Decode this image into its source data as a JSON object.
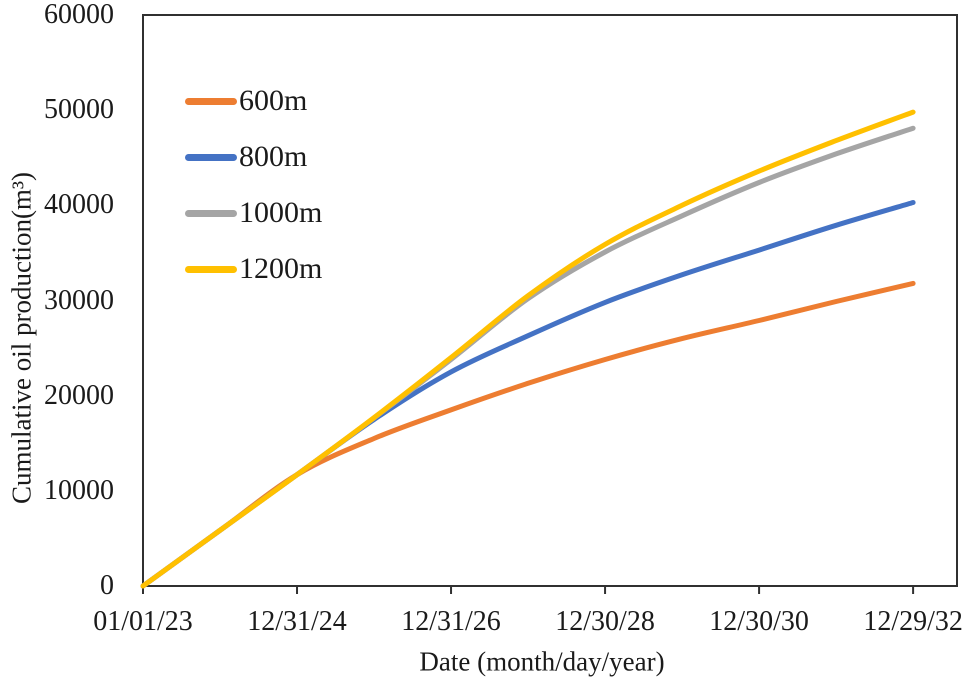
{
  "page": {
    "background": "#ffffff"
  },
  "axes": {
    "y_title": "Cumulative oil production(m³)",
    "x_title": "Date (month/day/year)",
    "y_tick_labels": [
      "0",
      "10000",
      "20000",
      "30000",
      "40000",
      "50000",
      "60000"
    ],
    "x_tick_labels": [
      "01/01/23",
      "12/31/24",
      "12/31/26",
      "12/30/28",
      "12/30/30",
      "12/29/32"
    ],
    "axis_color": "#303030"
  },
  "legend": {
    "items": [
      {
        "label": "600m",
        "color": "#ED7D31"
      },
      {
        "label": "800m",
        "color": "#4472C4"
      },
      {
        "label": "1000m",
        "color": "#A5A5A5"
      },
      {
        "label": "1200m",
        "color": "#FFC000"
      }
    ]
  },
  "chart_data": {
    "type": "line",
    "title": "",
    "xlabel": "Date (month/day/year)",
    "ylabel": "Cumulative oil production(m³)",
    "x_unit": "years since 01/01/23",
    "x": [
      0,
      1,
      2,
      3,
      4,
      5,
      6,
      7,
      8,
      9,
      10
    ],
    "x_tick_positions": [
      0,
      2,
      4,
      6,
      8,
      10
    ],
    "x_tick_labels": [
      "01/01/23",
      "12/31/24",
      "12/31/26",
      "12/30/28",
      "12/30/30",
      "12/29/32"
    ],
    "y_ticks": [
      0,
      10000,
      20000,
      30000,
      40000,
      50000,
      60000
    ],
    "ylim": [
      0,
      60000
    ],
    "xlim": [
      0,
      10.57
    ],
    "grid": false,
    "legend_position": "top-left-inside",
    "series": [
      {
        "name": "600m",
        "color": "#ED7D31",
        "values": [
          0,
          5850,
          11700,
          15500,
          18500,
          21300,
          23800,
          26000,
          27900,
          29900,
          31800
        ]
      },
      {
        "name": "800m",
        "color": "#4472C4",
        "values": [
          0,
          5850,
          11700,
          17500,
          22500,
          26300,
          29800,
          32700,
          35300,
          37900,
          40300
        ]
      },
      {
        "name": "1000m",
        "color": "#A5A5A5",
        "values": [
          0,
          5850,
          11700,
          17650,
          23800,
          30200,
          35100,
          38900,
          42400,
          45400,
          48100
        ]
      },
      {
        "name": "1200m",
        "color": "#FFC000",
        "values": [
          0,
          5850,
          11700,
          17700,
          24000,
          30500,
          35900,
          40000,
          43600,
          46800,
          49800
        ]
      }
    ]
  }
}
